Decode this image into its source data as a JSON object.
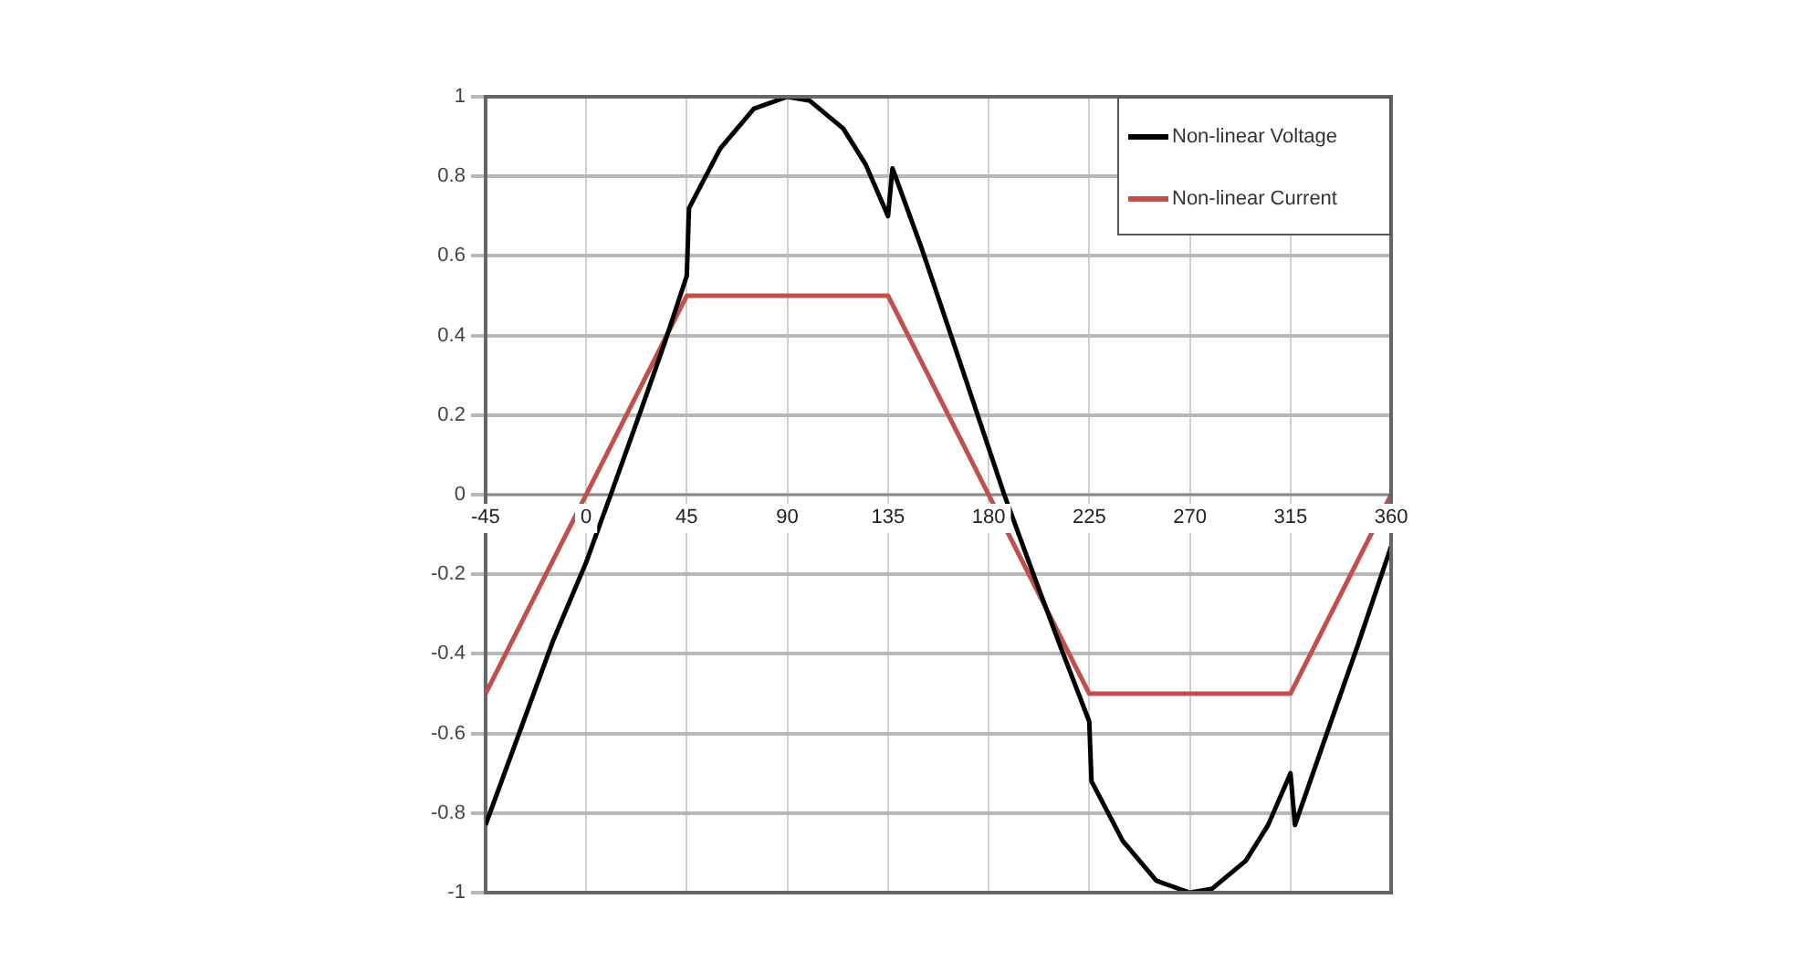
{
  "chart_data": {
    "type": "line",
    "xlim": [
      -45,
      360
    ],
    "xticks": [
      -45,
      0,
      45,
      90,
      135,
      180,
      225,
      270,
      315,
      360
    ],
    "ylim": [
      -1,
      1
    ],
    "yticks": [
      -1,
      -0.8,
      -0.6,
      -0.4,
      -0.2,
      0,
      0.2,
      0.4,
      0.6,
      0.8,
      1
    ],
    "grid": true,
    "legend": "top right",
    "marker": "none",
    "line_style": "solid",
    "series": [
      {
        "name": "Non-linear Voltage",
        "color": "#000000",
        "x": [
          -45,
          -30,
          -15,
          0,
          11,
          25,
          35,
          45,
          46,
          60,
          75,
          90,
          100,
          115,
          125,
          135,
          137,
          150,
          165,
          187,
          200,
          212,
          225,
          226,
          240,
          255,
          270,
          280,
          295,
          305,
          315,
          317,
          330,
          345,
          360
        ],
        "values": [
          -0.83,
          -0.6,
          -0.37,
          -0.17,
          0,
          0.22,
          0.38,
          0.55,
          0.72,
          0.87,
          0.97,
          1,
          0.99,
          0.92,
          0.83,
          0.7,
          0.82,
          0.62,
          0.37,
          0,
          -0.2,
          -0.38,
          -0.57,
          -0.72,
          -0.87,
          -0.97,
          -1,
          -0.99,
          -0.92,
          -0.83,
          -0.7,
          -0.83,
          -0.62,
          -0.38,
          -0.13
        ]
      },
      {
        "name": "Non-linear Current",
        "color": "#c0504d",
        "x": [
          -45,
          45,
          135,
          225,
          315,
          360
        ],
        "values": [
          -0.5,
          0.5,
          0.5,
          -0.5,
          -0.5,
          0
        ]
      }
    ]
  }
}
